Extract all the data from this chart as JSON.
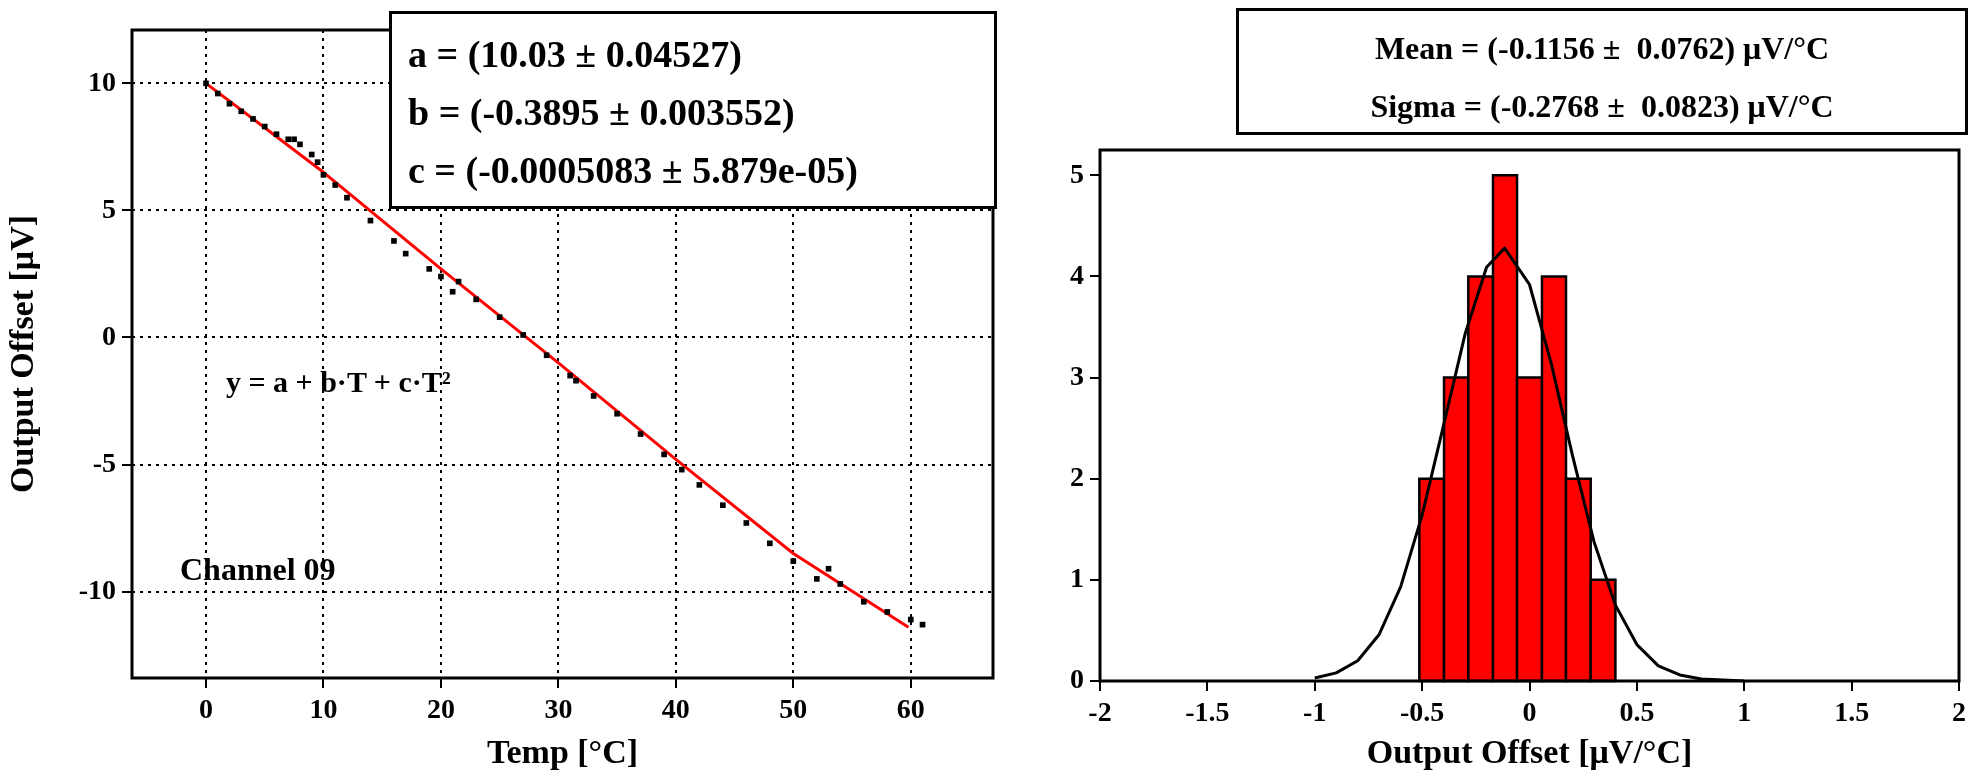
{
  "chart_data": [
    {
      "type": "scatter",
      "xlabel": "Temp [°C]",
      "ylabel": "Output Offset [μV]",
      "xlim": [
        -6.3,
        67
      ],
      "ylim": [
        -13.4,
        12.1
      ],
      "xticks": [
        0,
        10,
        20,
        30,
        40,
        50,
        60
      ],
      "yticks": [
        -10,
        -5,
        0,
        5,
        10
      ],
      "grid": true,
      "legend": false,
      "annotations": [
        "a = (10.03 ± 0.04527)",
        "b = (-0.3895 ± 0.003552)",
        "c = (-0.0005083 ± 5.879e-05)",
        "y = a + b·T + c·T²",
        "Channel 09"
      ],
      "series": [
        {
          "type": "scatter",
          "color": "#000000",
          "marker": "square",
          "x": [
            0,
            1,
            2,
            3,
            4,
            5,
            6,
            7,
            7.5,
            8,
            9,
            9.5,
            10,
            11,
            12,
            14,
            16,
            17,
            19,
            20,
            21,
            21.5,
            23,
            25,
            27,
            29,
            31,
            31.5,
            33,
            35,
            37,
            39,
            40.5,
            42,
            44,
            46,
            48,
            50,
            52,
            53,
            54,
            56,
            58,
            60,
            61
          ],
          "values": [
            10.0,
            9.6,
            9.2,
            8.9,
            8.6,
            8.3,
            8.0,
            7.8,
            7.8,
            7.6,
            7.2,
            6.9,
            6.4,
            6.0,
            5.5,
            4.6,
            3.8,
            3.3,
            2.7,
            2.4,
            1.8,
            2.2,
            1.5,
            0.8,
            0.1,
            -0.7,
            -1.5,
            -1.7,
            -2.3,
            -3.0,
            -3.8,
            -4.6,
            -5.2,
            -5.8,
            -6.6,
            -7.3,
            -8.1,
            -8.8,
            -9.5,
            -9.1,
            -9.7,
            -10.4,
            -10.8,
            -11.1,
            -11.3
          ]
        },
        {
          "type": "line",
          "color": "#ff0000",
          "marker": "none",
          "x": [
            0,
            10,
            20,
            30,
            40,
            50,
            59.8
          ],
          "values": [
            10.0,
            6.5,
            2.7,
            -1.0,
            -4.8,
            -8.5,
            -11.4
          ]
        }
      ]
    },
    {
      "type": "histogram",
      "xlabel": "Output Offset [μV/°C]",
      "xlim": [
        -2,
        2
      ],
      "ylim": [
        0,
        5.25
      ],
      "xticks": [
        -2,
        -1.5,
        -1,
        -0.5,
        0,
        0.5,
        1,
        1.5,
        2
      ],
      "yticks": [
        0,
        1,
        2,
        3,
        4,
        5
      ],
      "grid": false,
      "legend": false,
      "annotations": [
        "Mean = (-0.1156 ±  0.0762) μV/°C",
        "Sigma = (-0.2768 ±  0.0823) μV/°C"
      ],
      "bins": [
        -0.513,
        -0.398,
        -0.285,
        -0.17,
        -0.058,
        0.058,
        0.17,
        0.285,
        0.4
      ],
      "values": [
        2,
        3,
        4,
        5,
        3,
        4,
        2,
        1
      ],
      "color": "#ff0000",
      "series": [
        {
          "type": "line",
          "color": "#000000",
          "x": [
            -1.0,
            -0.9,
            -0.8,
            -0.7,
            -0.6,
            -0.5,
            -0.4,
            -0.3,
            -0.2,
            -0.116,
            0,
            0.1,
            0.2,
            0.3,
            0.4,
            0.5,
            0.6,
            0.7,
            0.8,
            1.0
          ],
          "values": [
            0.03,
            0.08,
            0.2,
            0.46,
            0.93,
            1.64,
            2.53,
            3.43,
            4.09,
            4.28,
            3.92,
            3.15,
            2.23,
            1.38,
            0.75,
            0.36,
            0.15,
            0.06,
            0.02,
            0
          ]
        }
      ]
    }
  ]
}
